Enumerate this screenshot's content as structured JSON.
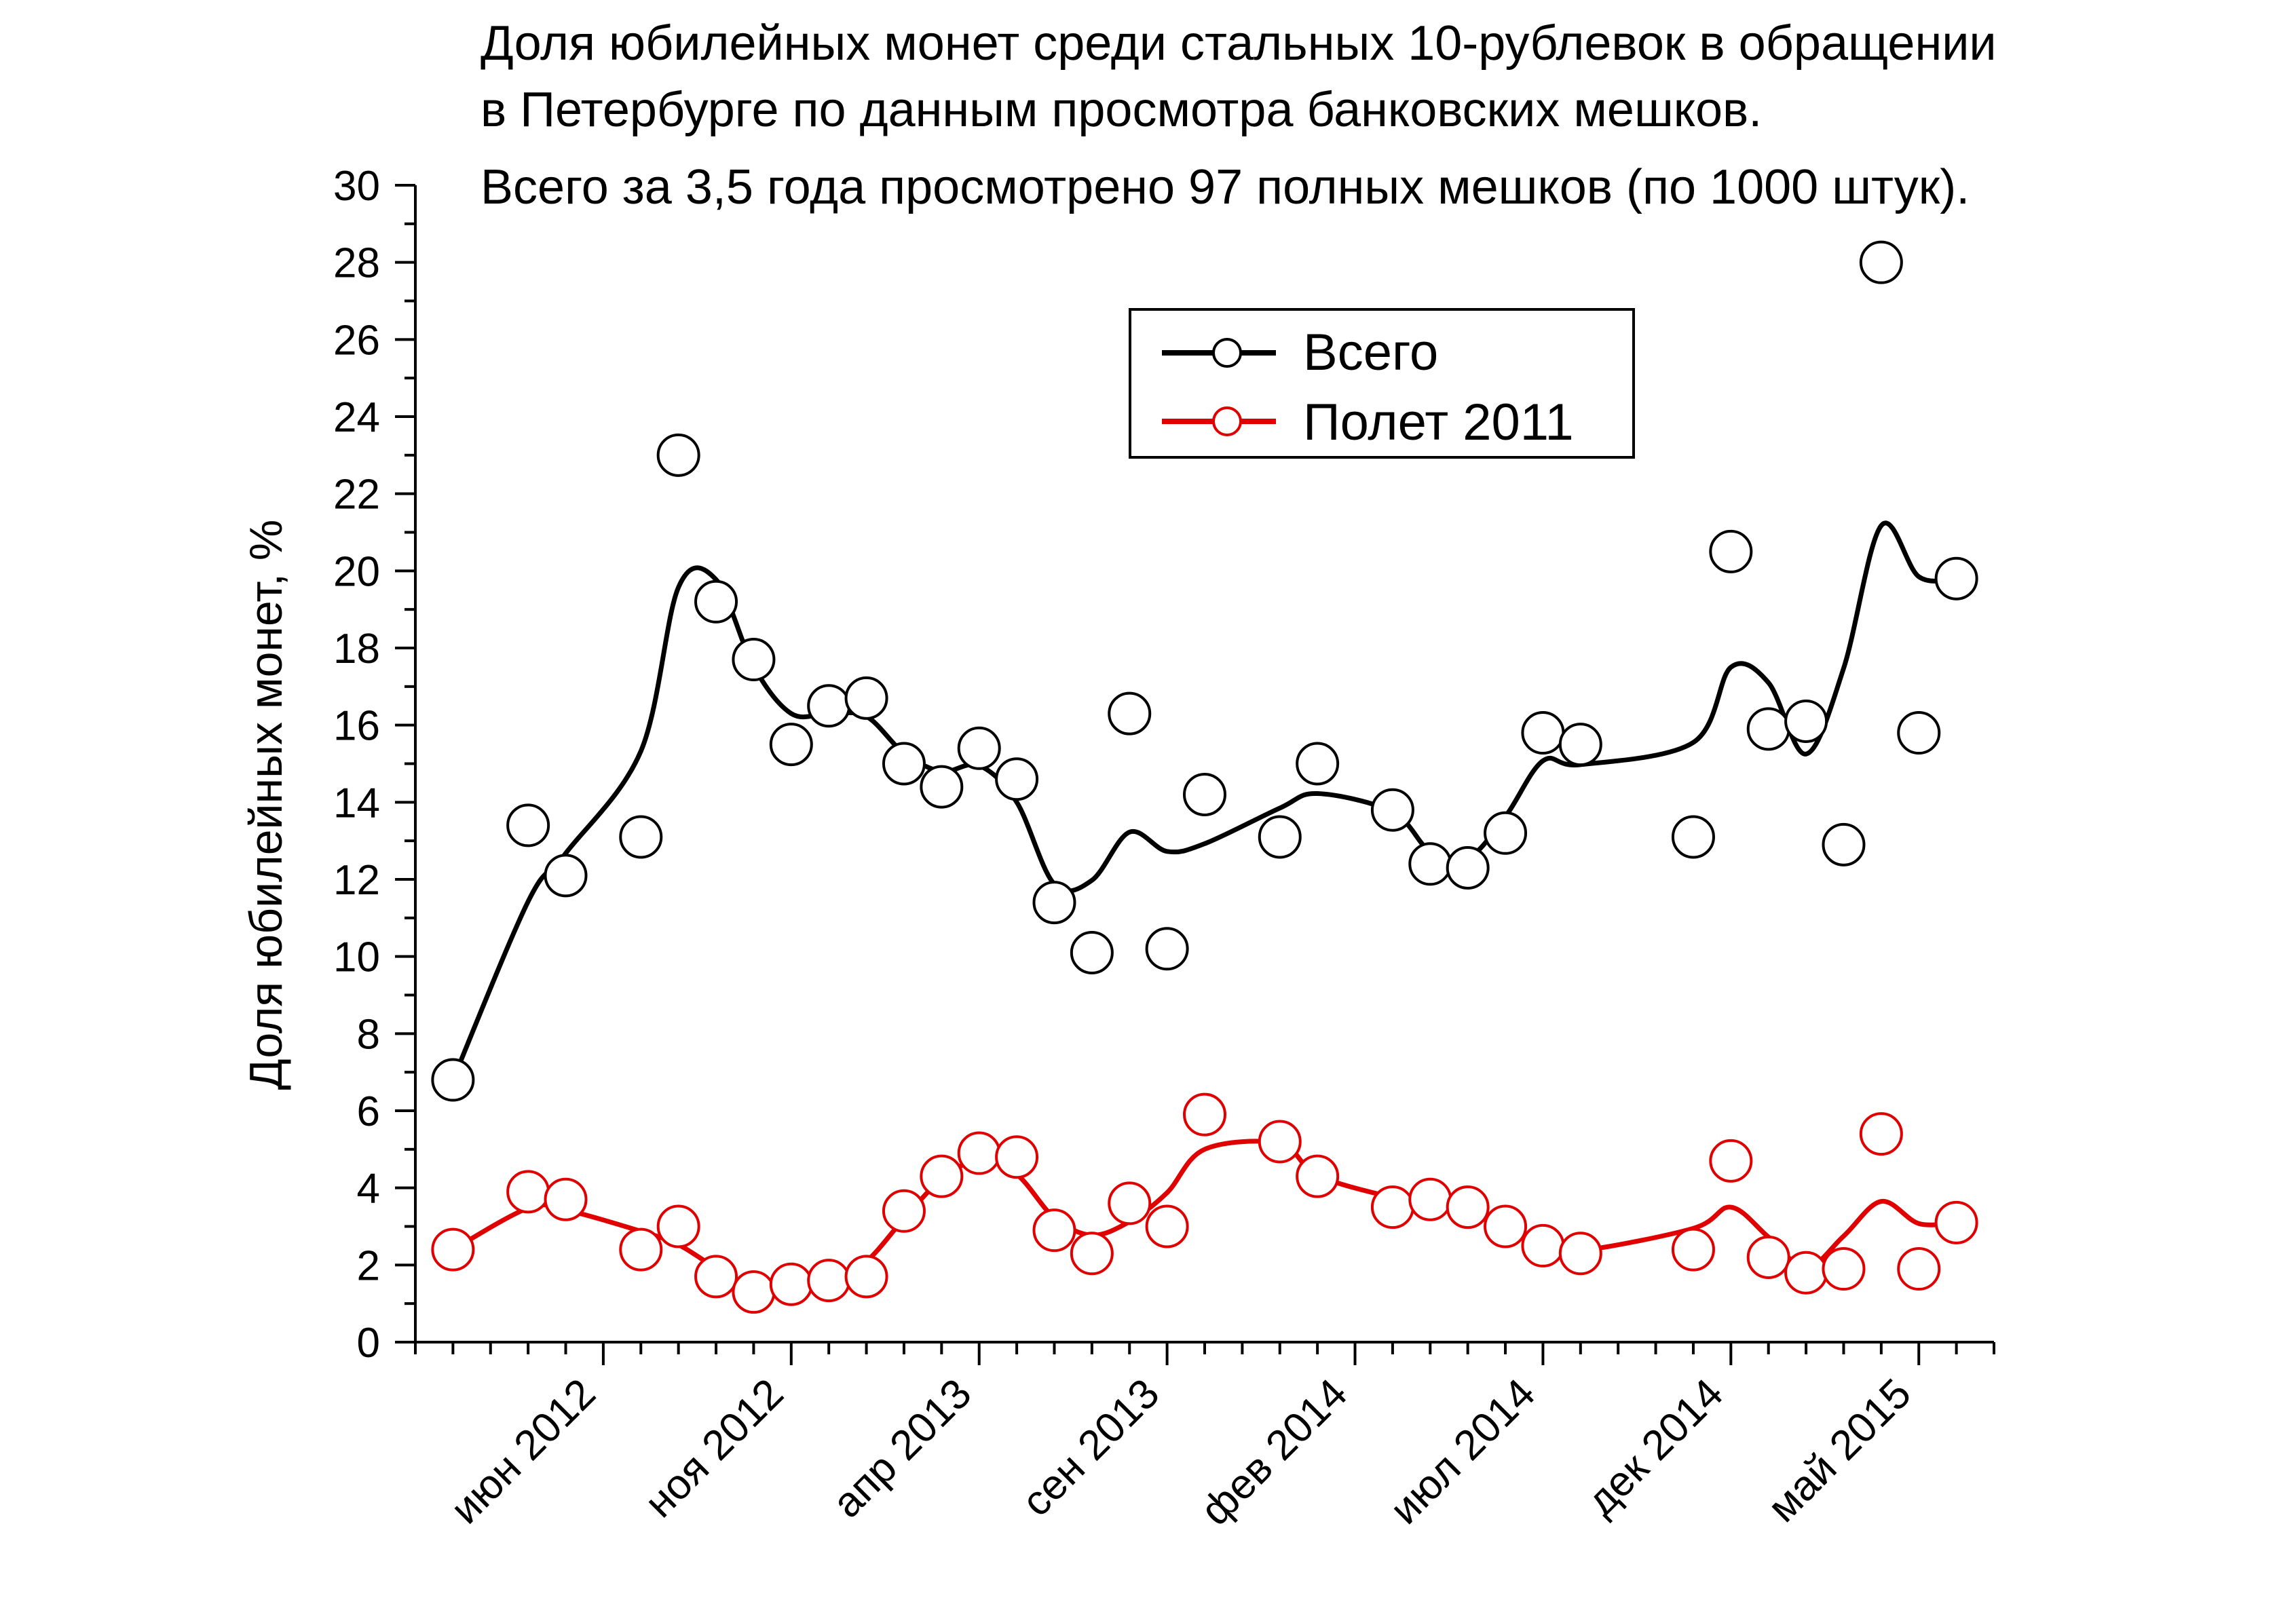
{
  "chart_data": {
    "type": "line",
    "title_lines": [
      "Доля юбилейных монет среди стальных 10-рублевок в обращении",
      "в Петербурге по данным просмотра банковских мешков.",
      "Всего за 3,5 года просмотрено 97 полных мешков (по 1000 штук)."
    ],
    "xlabel": "",
    "ylabel": "Доля юбилейных монет, %",
    "ylim": [
      0,
      30
    ],
    "yticks": [
      0,
      2,
      4,
      6,
      8,
      10,
      12,
      14,
      16,
      18,
      20,
      22,
      24,
      26,
      28,
      30
    ],
    "xlim": [
      0,
      42
    ],
    "xtick_positions": [
      5,
      10,
      15,
      20,
      25,
      30,
      35,
      40
    ],
    "xtick_labels": [
      "июн 2012",
      "ноя 2012",
      "апр 2013",
      "сен 2013",
      "фев 2014",
      "июл 2014",
      "дек 2014",
      "май 2015"
    ],
    "x_minor_step": 1,
    "grid": false,
    "legend_position": "top-center",
    "series": [
      {
        "name": "Всего",
        "color": "#000000",
        "points": [
          [
            1,
            6.8
          ],
          [
            3,
            13.4
          ],
          [
            4,
            12.1
          ],
          [
            6,
            13.1
          ],
          [
            7,
            23.0
          ],
          [
            8,
            19.2
          ],
          [
            9,
            17.7
          ],
          [
            10,
            15.5
          ],
          [
            11,
            16.5
          ],
          [
            12,
            16.7
          ],
          [
            13,
            15.0
          ],
          [
            14,
            14.4
          ],
          [
            15,
            15.4
          ],
          [
            16,
            14.6
          ],
          [
            17,
            11.4
          ],
          [
            18,
            10.1
          ],
          [
            19,
            16.3
          ],
          [
            20,
            10.2
          ],
          [
            21,
            14.2
          ],
          [
            23,
            13.1
          ],
          [
            24,
            15.0
          ],
          [
            26,
            13.8
          ],
          [
            27,
            12.4
          ],
          [
            28,
            12.3
          ],
          [
            29,
            13.2
          ],
          [
            30,
            15.8
          ],
          [
            31,
            15.5
          ],
          [
            34,
            13.1
          ],
          [
            35,
            20.5
          ],
          [
            36,
            15.9
          ],
          [
            37,
            16.1
          ],
          [
            38,
            12.9
          ],
          [
            39,
            28.0
          ],
          [
            40,
            15.8
          ],
          [
            41,
            19.8
          ]
        ]
      },
      {
        "name": "Полет 2011",
        "color": "#e00000",
        "points": [
          [
            1,
            2.4
          ],
          [
            3,
            3.9
          ],
          [
            4,
            3.7
          ],
          [
            6,
            2.4
          ],
          [
            7,
            3.0
          ],
          [
            8,
            1.7
          ],
          [
            9,
            1.3
          ],
          [
            10,
            1.5
          ],
          [
            11,
            1.6
          ],
          [
            12,
            1.7
          ],
          [
            13,
            3.4
          ],
          [
            14,
            4.3
          ],
          [
            15,
            4.9
          ],
          [
            16,
            4.8
          ],
          [
            17,
            2.9
          ],
          [
            18,
            2.3
          ],
          [
            19,
            3.6
          ],
          [
            20,
            3.0
          ],
          [
            21,
            5.9
          ],
          [
            23,
            5.2
          ],
          [
            24,
            4.3
          ],
          [
            26,
            3.5
          ],
          [
            27,
            3.7
          ],
          [
            28,
            3.5
          ],
          [
            29,
            3.0
          ],
          [
            30,
            2.5
          ],
          [
            31,
            2.3
          ],
          [
            34,
            2.4
          ],
          [
            35,
            4.7
          ],
          [
            36,
            2.2
          ],
          [
            37,
            1.8
          ],
          [
            38,
            1.9
          ],
          [
            39,
            5.4
          ],
          [
            40,
            1.9
          ],
          [
            41,
            3.1
          ]
        ]
      }
    ]
  }
}
